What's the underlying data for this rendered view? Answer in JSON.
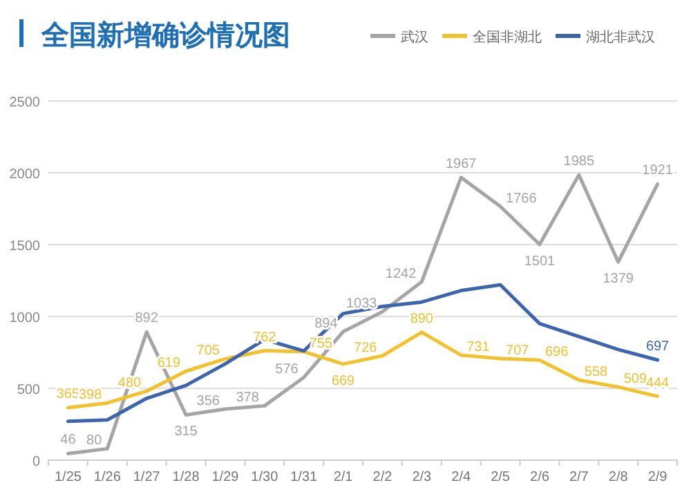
{
  "chart_data": {
    "type": "line",
    "title": "全国新增确诊情况图",
    "categories": [
      "1/25",
      "1/26",
      "1/27",
      "1/28",
      "1/29",
      "1/30",
      "1/31",
      "2/1",
      "2/2",
      "2/3",
      "2/4",
      "2/5",
      "2/6",
      "2/7",
      "2/8",
      "2/9"
    ],
    "series": [
      {
        "name": "武汉",
        "color": "#a5a5a5",
        "values": [
          46,
          80,
          892,
          315,
          356,
          378,
          576,
          894,
          1033,
          1242,
          1967,
          1766,
          1501,
          1985,
          1379,
          1921
        ],
        "value_labels": [
          "46",
          "80",
          "892",
          "315",
          "356",
          "378",
          "576",
          "894",
          "1033",
          "1242",
          "1967",
          "1766",
          "1501",
          "1985",
          "1379",
          "1921"
        ]
      },
      {
        "name": "全国非湖北",
        "color": "#f2c12e",
        "values": [
          365,
          398,
          480,
          619,
          705,
          762,
          755,
          669,
          726,
          890,
          731,
          707,
          696,
          558,
          509,
          444
        ],
        "value_labels": [
          "365",
          "398",
          "480",
          "619",
          "705",
          "762",
          "755",
          "669",
          "726",
          "890",
          "731",
          "707",
          "696",
          "558",
          "509",
          "444"
        ]
      },
      {
        "name": "湖北非武汉",
        "color": "#3d65ae",
        "values": [
          270,
          280,
          430,
          520,
          670,
          840,
          760,
          1020,
          1070,
          1100,
          1180,
          1220,
          950,
          860,
          770,
          697
        ],
        "value_labels": [
          null,
          null,
          null,
          null,
          null,
          null,
          null,
          null,
          null,
          null,
          null,
          null,
          null,
          null,
          null,
          "697"
        ]
      }
    ],
    "ylim": [
      0,
      2500
    ],
    "yticks": [
      0,
      500,
      1000,
      1500,
      2000,
      2500
    ],
    "grid": "y",
    "legend": "top right",
    "marker": "none",
    "line_style": "solid"
  }
}
